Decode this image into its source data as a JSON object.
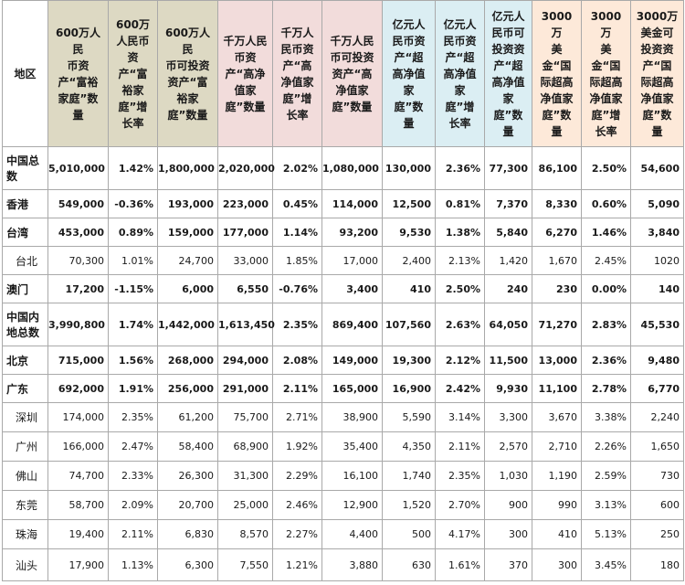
{
  "headers": [
    "地区",
    "600万人民币资产“富裕家庭”数量",
    "600万人民币资产“富裕家庭”增长率",
    "600万人民币可投资资产“富裕家庭”数量",
    "千万人民币资产“高净值家庭”数量",
    "千万人民币资产“高净值家庭”增长率",
    "千万人民币可投资资产“高净值家庭”数量",
    "亿元人民币资产“超高净值家庭”数量",
    "亿元人民币资产“超高净值家庭”增长率",
    "亿元人民币可投资资产“超高净值家庭”数量",
    "3000万美金“国际超高净值家庭”数量",
    "3000万美金“国际超高净值家庭”增长率",
    "3000万美金可投资资产“国际超高净值家庭”数量"
  ],
  "header_lines": [
    "地区",
    "600万人民\n币资\n产“富裕\n家庭”数\n量",
    "600万\n人民币\n资\n产“富\n裕家\n庭”增\n长率",
    "600万人民\n币可投资\n资产“富\n裕家\n庭”数量",
    "千万人民\n币资\n产“高净\n值家\n庭”数量",
    "千万人\n民币资\n产“高\n净值家\n庭”增\n长率",
    "千万人民\n币可投资\n资产“高\n净值家\n庭”数量",
    "亿元人\n民币资\n产“超\n高净值\n家\n庭”数\n量",
    "亿元人\n民币资\n产“超\n高净值\n家\n庭”增\n长率",
    "亿元人\n民币可\n投资资\n产“超\n高净值\n家\n庭”数\n量",
    "3000万\n美\n金“国\n际超高\n净值家\n庭”数\n量",
    "3000万\n美\n金“国\n际超高\n净值家\n庭”增\n长率",
    "3000万\n美金可\n投资资\n产“国\n际超高\n净值家\n庭”数\n量"
  ],
  "rows": [
    {
      "region": "中国总\n数",
      "bold": true,
      "values": [
        "5,010,000",
        "1.42%",
        "1,800,000",
        "2,020,000",
        "2.02%",
        "1,080,000",
        "130,000",
        "2.36%",
        "77,300",
        "86,100",
        "2.50%",
        "54,600"
      ]
    },
    {
      "region": "香港",
      "bold": true,
      "values": [
        "549,000",
        "-0.36%",
        "193,000",
        "223,000",
        "0.45%",
        "114,000",
        "12,500",
        "0.81%",
        "7,370",
        "8,330",
        "0.60%",
        "5,090"
      ]
    },
    {
      "region": "台湾",
      "bold": true,
      "values": [
        "453,000",
        "0.89%",
        "159,000",
        "177,000",
        "1.14%",
        "93,200",
        "9,530",
        "1.38%",
        "5,840",
        "6,270",
        "1.46%",
        "3,840"
      ]
    },
    {
      "region": "台北",
      "bold": false,
      "values": [
        "70,300",
        "1.01%",
        "24,700",
        "33,000",
        "1.85%",
        "17,000",
        "2,400",
        "2.13%",
        "1,420",
        "1,670",
        "2.45%",
        "1020"
      ]
    },
    {
      "region": "澳门",
      "bold": true,
      "values": [
        "17,200",
        "-1.15%",
        "6,000",
        "6,550",
        "-0.76%",
        "3,400",
        "410",
        "2.50%",
        "240",
        "230",
        "0.00%",
        "140"
      ]
    },
    {
      "region": "中国内\n地总数",
      "bold": true,
      "values": [
        "3,990,800",
        "1.74%",
        "1,442,000",
        "1,613,450",
        "2.35%",
        "869,400",
        "107,560",
        "2.63%",
        "64,050",
        "71,270",
        "2.83%",
        "45,530"
      ]
    },
    {
      "region": "北京",
      "bold": true,
      "values": [
        "715,000",
        "1.56%",
        "268,000",
        "294,000",
        "2.08%",
        "149,000",
        "19,300",
        "2.12%",
        "11,500",
        "13,000",
        "2.36%",
        "9,480"
      ]
    },
    {
      "region": "广东",
      "bold": true,
      "values": [
        "692,000",
        "1.91%",
        "256,000",
        "291,000",
        "2.11%",
        "165,000",
        "16,900",
        "2.42%",
        "9,930",
        "11,100",
        "2.78%",
        "6,770"
      ]
    },
    {
      "region": "深圳",
      "bold": false,
      "values": [
        "174,000",
        "2.35%",
        "61,200",
        "75,700",
        "2.71%",
        "38,900",
        "5,590",
        "3.14%",
        "3,300",
        "3,670",
        "3.38%",
        "2,240"
      ]
    },
    {
      "region": "广州",
      "bold": false,
      "values": [
        "166,000",
        "2.47%",
        "58,400",
        "68,900",
        "1.92%",
        "35,400",
        "4,350",
        "2.11%",
        "2,570",
        "2,710",
        "2.26%",
        "1,650"
      ]
    },
    {
      "region": "佛山",
      "bold": false,
      "values": [
        "74,700",
        "2.33%",
        "26,300",
        "31,300",
        "2.29%",
        "16,100",
        "1,740",
        "2.35%",
        "1,030",
        "1,190",
        "2.59%",
        "730"
      ]
    },
    {
      "region": "东莞",
      "bold": false,
      "values": [
        "58,700",
        "2.09%",
        "20,700",
        "25,000",
        "2.46%",
        "12,900",
        "1,520",
        "2.70%",
        "900",
        "990",
        "3.13%",
        "600"
      ]
    },
    {
      "region": "珠海",
      "bold": false,
      "values": [
        "19,400",
        "2.11%",
        "6,830",
        "8,570",
        "2.27%",
        "4,400",
        "500",
        "4.17%",
        "300",
        "410",
        "5.13%",
        "250"
      ]
    },
    {
      "region": "汕头",
      "bold": false,
      "values": [
        "17,900",
        "1.13%",
        "6,300",
        "7,550",
        "1.21%",
        "3,880",
        "630",
        "1.61%",
        "370",
        "300",
        "3.45%",
        "180"
      ]
    }
  ]
}
